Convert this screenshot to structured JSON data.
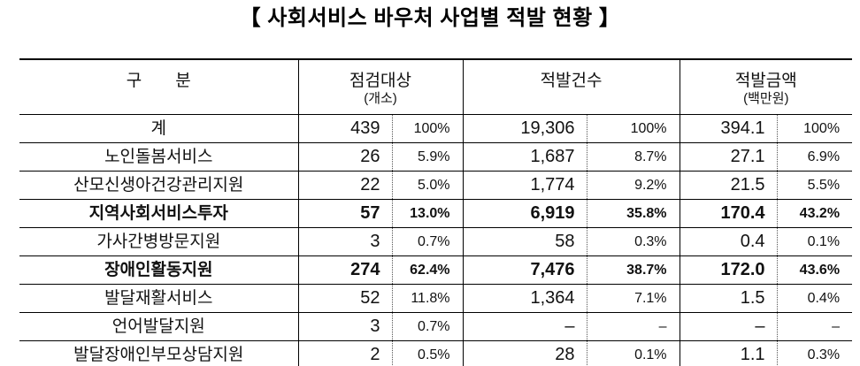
{
  "title": "【 사회서비스 바우처 사업별 적발 현황 】",
  "table": {
    "category_header": "구　　분",
    "groups": [
      {
        "label": "점검대상",
        "sublabel": "(개소)"
      },
      {
        "label": "적발건수",
        "sublabel": ""
      },
      {
        "label": "적발금액",
        "sublabel": "(백만원)"
      }
    ],
    "rows": [
      {
        "label": "계",
        "bold": false,
        "values": [
          "439",
          "100%",
          "19,306",
          "100%",
          "394.1",
          "100%"
        ]
      },
      {
        "label": "노인돌봄서비스",
        "bold": false,
        "values": [
          "26",
          "5.9%",
          "1,687",
          "8.7%",
          "27.1",
          "6.9%"
        ]
      },
      {
        "label": "산모신생아건강관리지원",
        "bold": false,
        "values": [
          "22",
          "5.0%",
          "1,774",
          "9.2%",
          "21.5",
          "5.5%"
        ]
      },
      {
        "label": "지역사회서비스투자",
        "bold": true,
        "values": [
          "57",
          "13.0%",
          "6,919",
          "35.8%",
          "170.4",
          "43.2%"
        ]
      },
      {
        "label": "가사간병방문지원",
        "bold": false,
        "values": [
          "3",
          "0.7%",
          "58",
          "0.3%",
          "0.4",
          "0.1%"
        ]
      },
      {
        "label": "장애인활동지원",
        "bold": true,
        "values": [
          "274",
          "62.4%",
          "7,476",
          "38.7%",
          "172.0",
          "43.6%"
        ]
      },
      {
        "label": "발달재활서비스",
        "bold": false,
        "values": [
          "52",
          "11.8%",
          "1,364",
          "7.1%",
          "1.5",
          "0.4%"
        ]
      },
      {
        "label": "언어발달지원",
        "bold": false,
        "values": [
          "3",
          "0.7%",
          "–",
          "–",
          "–",
          "–"
        ]
      },
      {
        "label": "발달장애인부모상담지원",
        "bold": false,
        "values": [
          "2",
          "0.5%",
          "28",
          "0.1%",
          "1.1",
          "0.3%"
        ]
      }
    ]
  },
  "colors": {
    "background": "#ffffff",
    "border": "#000000",
    "text": "#111111"
  }
}
